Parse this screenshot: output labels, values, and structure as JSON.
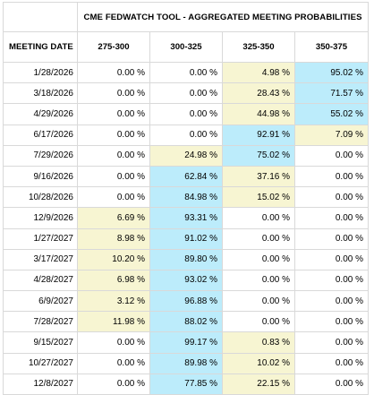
{
  "title": "CME FEDWATCH TOOL - AGGREGATED MEETING PROBABILITIES",
  "date_header": "MEETING DATE",
  "columns": [
    "275-300",
    "300-325",
    "325-350",
    "350-375"
  ],
  "colors": {
    "highest_probability": "#bcecfb",
    "secondary_probability": "#f7f5d2",
    "border": "#d9d9d9"
  },
  "rows": [
    {
      "date": "1/28/2026",
      "values": [
        "0.00 %",
        "0.00 %",
        "4.98 %",
        "95.02 %"
      ],
      "highlight": [
        "",
        "",
        "yellow",
        "blue"
      ]
    },
    {
      "date": "3/18/2026",
      "values": [
        "0.00 %",
        "0.00 %",
        "28.43 %",
        "71.57 %"
      ],
      "highlight": [
        "",
        "",
        "yellow",
        "blue"
      ]
    },
    {
      "date": "4/29/2026",
      "values": [
        "0.00 %",
        "0.00 %",
        "44.98 %",
        "55.02 %"
      ],
      "highlight": [
        "",
        "",
        "yellow",
        "blue"
      ]
    },
    {
      "date": "6/17/2026",
      "values": [
        "0.00 %",
        "0.00 %",
        "92.91 %",
        "7.09 %"
      ],
      "highlight": [
        "",
        "",
        "blue",
        "yellow"
      ]
    },
    {
      "date": "7/29/2026",
      "values": [
        "0.00 %",
        "24.98 %",
        "75.02 %",
        "0.00 %"
      ],
      "highlight": [
        "",
        "yellow",
        "blue",
        ""
      ]
    },
    {
      "date": "9/16/2026",
      "values": [
        "0.00 %",
        "62.84 %",
        "37.16 %",
        "0.00 %"
      ],
      "highlight": [
        "",
        "blue",
        "yellow",
        ""
      ]
    },
    {
      "date": "10/28/2026",
      "values": [
        "0.00 %",
        "84.98 %",
        "15.02 %",
        "0.00 %"
      ],
      "highlight": [
        "",
        "blue",
        "yellow",
        ""
      ]
    },
    {
      "date": "12/9/2026",
      "values": [
        "6.69 %",
        "93.31 %",
        "0.00 %",
        "0.00 %"
      ],
      "highlight": [
        "yellow",
        "blue",
        "",
        ""
      ]
    },
    {
      "date": "1/27/2027",
      "values": [
        "8.98 %",
        "91.02 %",
        "0.00 %",
        "0.00 %"
      ],
      "highlight": [
        "yellow",
        "blue",
        "",
        ""
      ]
    },
    {
      "date": "3/17/2027",
      "values": [
        "10.20 %",
        "89.80 %",
        "0.00 %",
        "0.00 %"
      ],
      "highlight": [
        "yellow",
        "blue",
        "",
        ""
      ]
    },
    {
      "date": "4/28/2027",
      "values": [
        "6.98 %",
        "93.02 %",
        "0.00 %",
        "0.00 %"
      ],
      "highlight": [
        "yellow",
        "blue",
        "",
        ""
      ]
    },
    {
      "date": "6/9/2027",
      "values": [
        "3.12 %",
        "96.88 %",
        "0.00 %",
        "0.00 %"
      ],
      "highlight": [
        "yellow",
        "blue",
        "",
        ""
      ]
    },
    {
      "date": "7/28/2027",
      "values": [
        "11.98 %",
        "88.02 %",
        "0.00 %",
        "0.00 %"
      ],
      "highlight": [
        "yellow",
        "blue",
        "",
        ""
      ]
    },
    {
      "date": "9/15/2027",
      "values": [
        "0.00 %",
        "99.17 %",
        "0.83 %",
        "0.00 %"
      ],
      "highlight": [
        "",
        "blue",
        "yellow",
        ""
      ]
    },
    {
      "date": "10/27/2027",
      "values": [
        "0.00 %",
        "89.98 %",
        "10.02 %",
        "0.00 %"
      ],
      "highlight": [
        "",
        "blue",
        "yellow",
        ""
      ]
    },
    {
      "date": "12/8/2027",
      "values": [
        "0.00 %",
        "77.85 %",
        "22.15 %",
        "0.00 %"
      ],
      "highlight": [
        "",
        "blue",
        "yellow",
        ""
      ]
    }
  ]
}
